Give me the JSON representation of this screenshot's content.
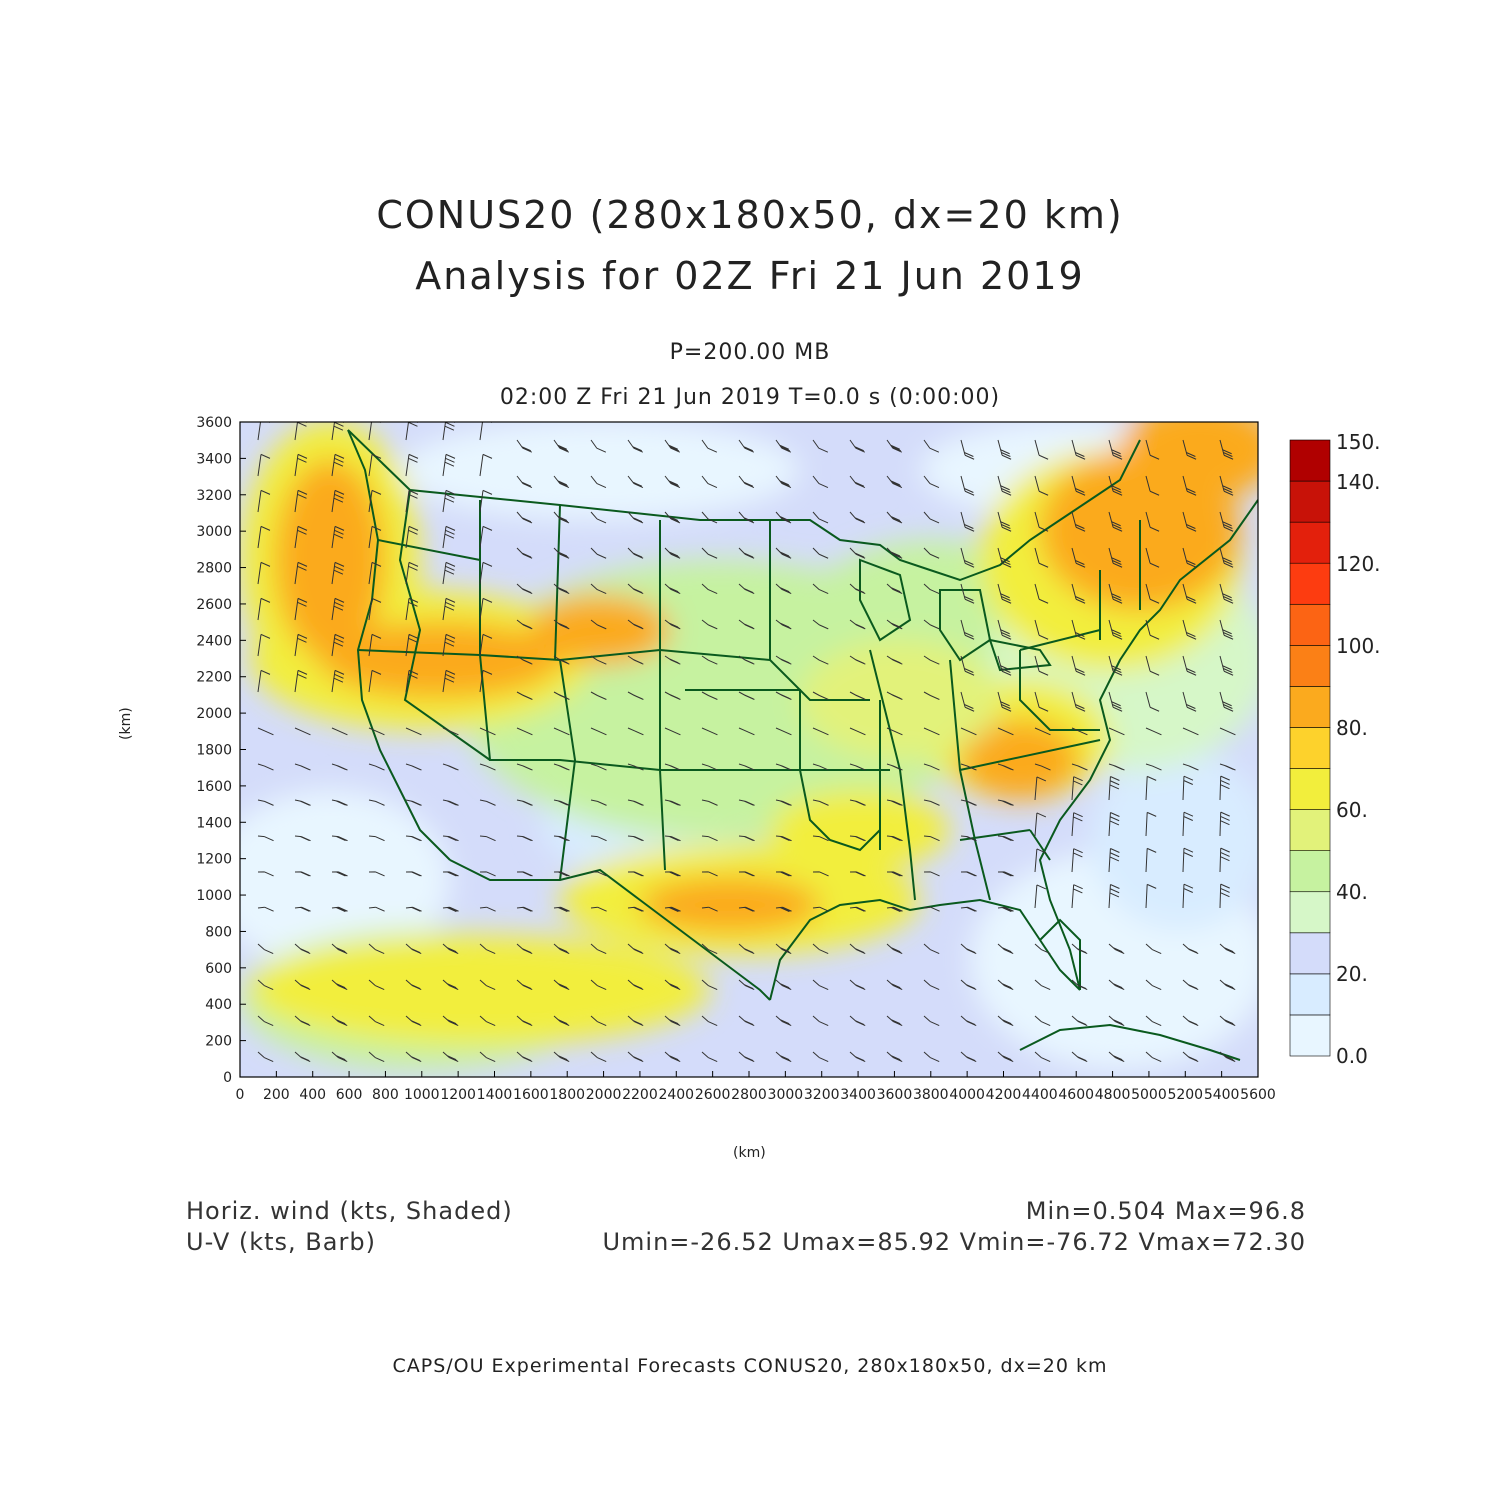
{
  "title_line1": "CONUS20 (280x180x50, dx=20 km)",
  "title_line2": "Analysis for 02Z Fri 21 Jun 2019",
  "level": "P=200.00 MB",
  "time_line": "02:00 Z Fri 21 Jun 2019    T=0.0 s (0:00:00)",
  "x_axis_label": "(km)",
  "y_axis_label": "(km)",
  "x_ticks": [
    "0",
    "200",
    "400",
    "600",
    "800",
    "1000",
    "1200",
    "1400",
    "1600",
    "1800",
    "2000",
    "2200",
    "2400",
    "2600",
    "2800",
    "3000",
    "3200",
    "3400",
    "3600",
    "3800",
    "4000",
    "4200",
    "4400",
    "4600",
    "4800",
    "5000",
    "5200",
    "5400",
    "5600"
  ],
  "y_ticks": [
    "0",
    "200",
    "400",
    "600",
    "800",
    "1000",
    "1200",
    "1400",
    "1600",
    "1800",
    "2000",
    "2200",
    "2400",
    "2600",
    "2800",
    "3000",
    "3200",
    "3400",
    "3600"
  ],
  "colorbar": {
    "labels": [
      "0.0",
      "20.",
      "40.",
      "60.",
      "80.",
      "100.",
      "120.",
      "140.",
      "150."
    ],
    "colors": [
      "#e8f6ff",
      "#d8ecff",
      "#d4dcfa",
      "#d6f7c8",
      "#c6f2a0",
      "#e2f27a",
      "#f2ee3c",
      "#fdd22c",
      "#fbaa1e",
      "#fb8016",
      "#fc6414",
      "#fd3c10",
      "#e3200c",
      "#c81208",
      "#b00000"
    ]
  },
  "field_label": "Horiz. wind (kts, Shaded)",
  "barb_label": "U-V (kts, Barb)",
  "minmax": "Min=0.504 Max=96.8",
  "uv_minmax": "Umin=-26.52 Umax=85.92 Vmin=-76.72 Vmax=72.30",
  "footer": "CAPS/OU Experimental Forecasts  CONUS20, 280x180x50, dx=20 km",
  "colors": {
    "map_lines": "#0a5a1e",
    "frame": "#000000"
  }
}
